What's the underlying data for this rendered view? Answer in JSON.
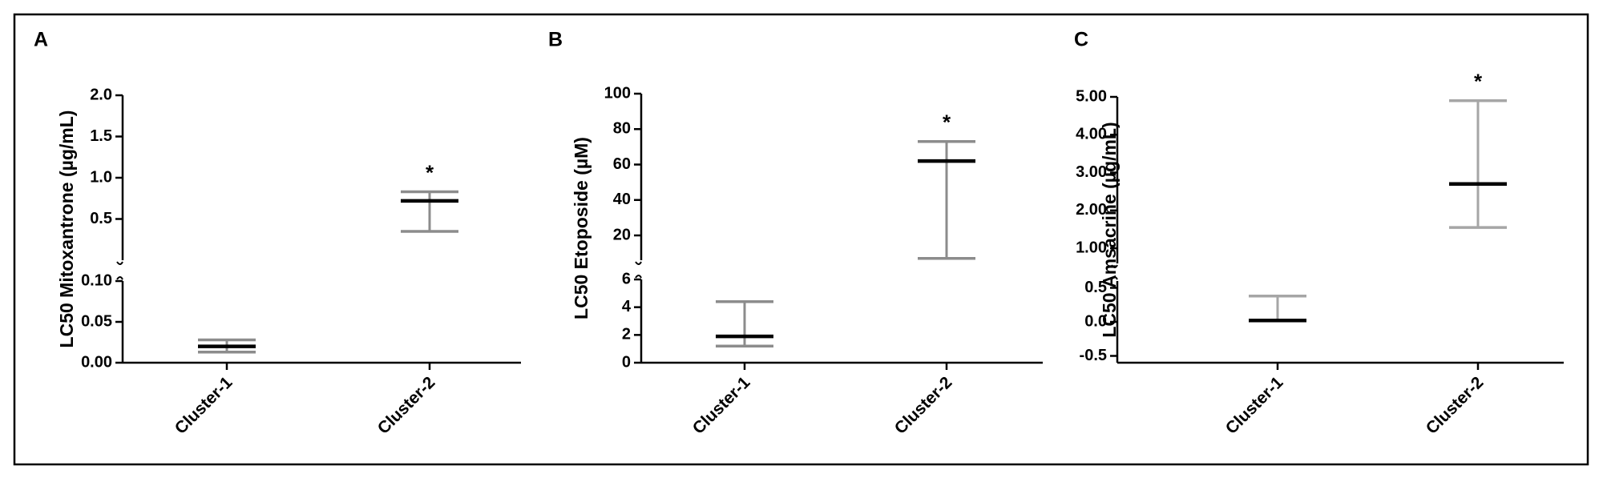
{
  "chart_data": [
    {
      "type": "median-range",
      "label": "A",
      "y_label": "LC50 Mitoxantrone (µg/mL)",
      "categories": [
        "Cluster-1",
        "Cluster-2"
      ],
      "median": [
        0.02,
        0.72
      ],
      "min": [
        0.013,
        0.35
      ],
      "max": [
        0.028,
        0.83
      ],
      "significance": [
        null,
        "*"
      ],
      "median_color": "#000000",
      "range_color": "#8c8c8c",
      "segments": [
        {
          "ylim": [
            0,
            0.1
          ],
          "yticks": [
            {
              "value": 0,
              "label": "0.00"
            },
            {
              "value": 0.05,
              "label": "0.05"
            },
            {
              "value": 0.1,
              "label": "0.10"
            }
          ]
        },
        {
          "ylim": [
            0,
            2
          ],
          "yticks": [
            0.5,
            {
              "value": 1,
              "label": "1.0"
            },
            1.5,
            {
              "value": 2,
              "label": "2.0"
            }
          ]
        }
      ]
    },
    {
      "type": "median-range",
      "label": "B",
      "y_label": "LC50 Etoposide (µM)",
      "categories": [
        "Cluster-1",
        "Cluster-2"
      ],
      "median": [
        1.9,
        62
      ],
      "min": [
        1.2,
        7
      ],
      "max": [
        4.4,
        73
      ],
      "significance": [
        null,
        "*"
      ],
      "median_color": "#000000",
      "range_color": "#8c8c8c",
      "segments": [
        {
          "ylim": [
            0,
            6
          ],
          "yticks": [
            0,
            2,
            4,
            6
          ]
        },
        {
          "ylim": [
            6,
            100
          ],
          "yticks": [
            20,
            40,
            60,
            80,
            100
          ]
        }
      ]
    },
    {
      "type": "median-range",
      "label": "C",
      "y_label": "LC50 Amsacrine (µg/mL)",
      "categories": [
        "Cluster-1",
        "Cluster-2"
      ],
      "median": [
        0.02,
        2.7
      ],
      "min": [
        0.02,
        1.55
      ],
      "max": [
        0.38,
        4.9
      ],
      "significance": [
        null,
        "*"
      ],
      "median_color": "#000000",
      "range_color": "#a6a6a6",
      "segments": [
        {
          "ylim": [
            -0.6,
            0.6
          ],
          "yticks": [
            -0.5,
            {
              "value": 0,
              "label": "0.0"
            },
            0.5
          ]
        },
        {
          "ylim": [
            0.6,
            5
          ],
          "yticks": [
            {
              "value": 1,
              "label": "1.00"
            },
            {
              "value": 2,
              "label": "2.00"
            },
            {
              "value": 3,
              "label": "3.00"
            },
            {
              "value": 4,
              "label": "4.00"
            },
            {
              "value": 5,
              "label": "5.00"
            }
          ]
        }
      ]
    }
  ]
}
